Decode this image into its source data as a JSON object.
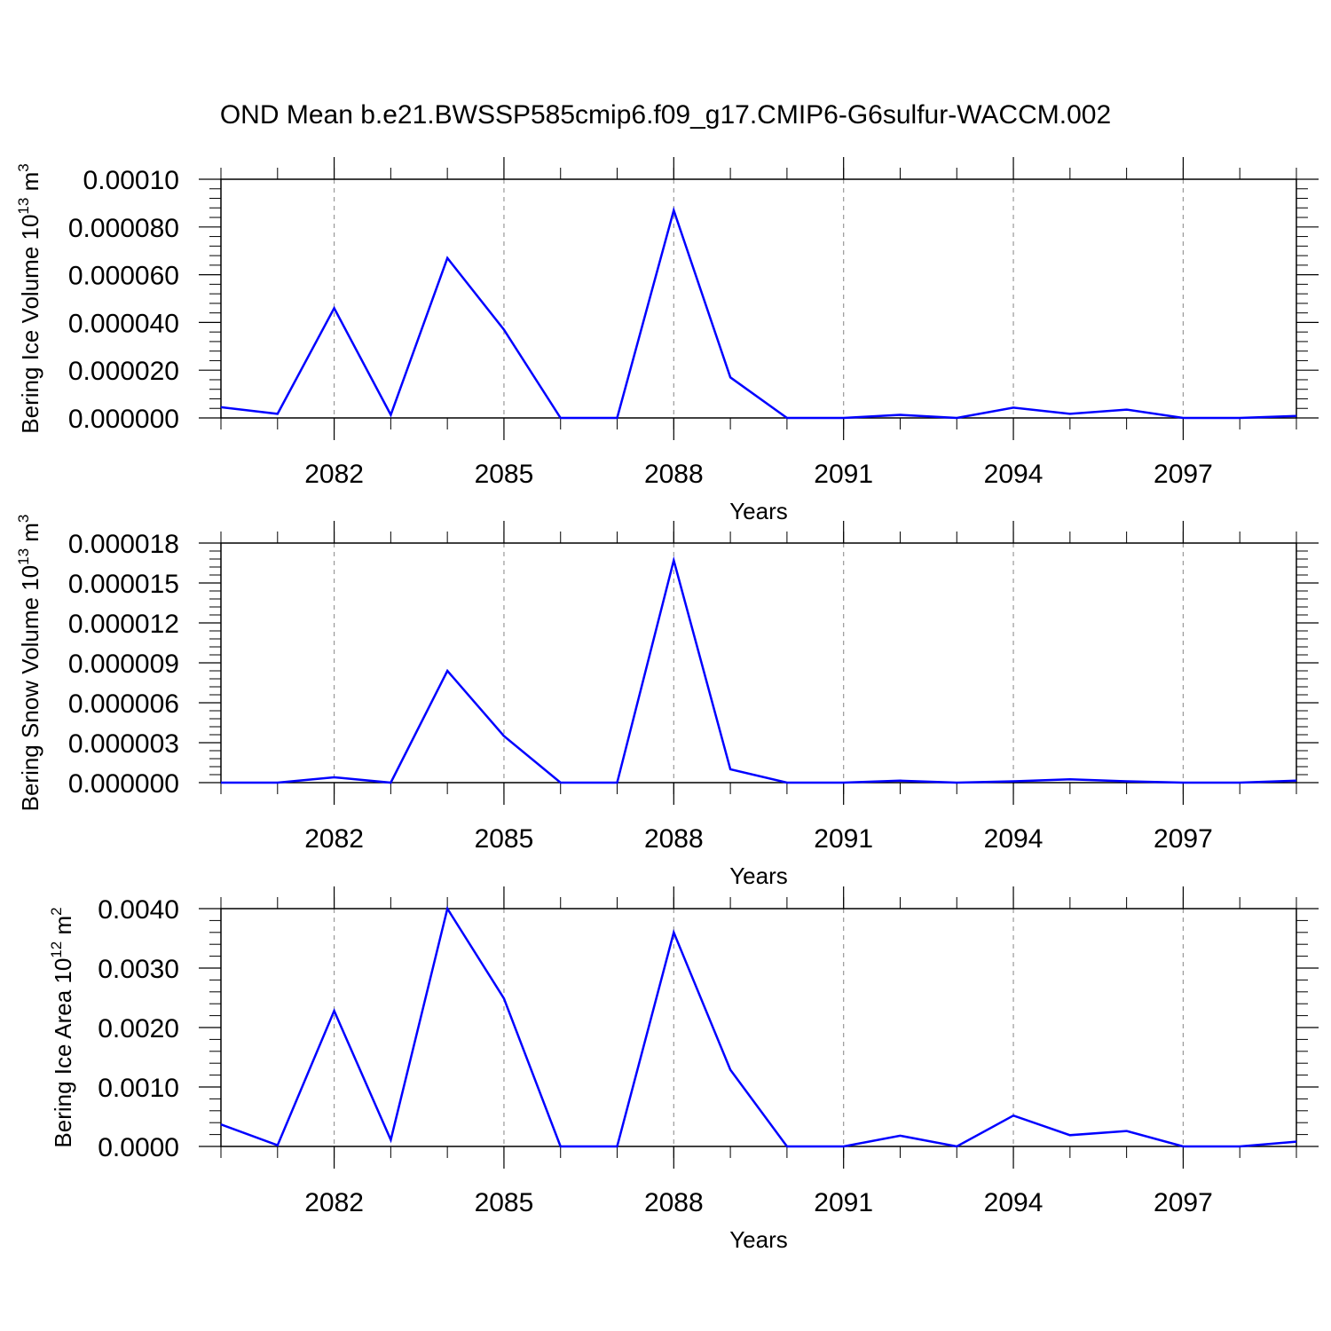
{
  "title": "OND Mean b.e21.BWSSP585cmip6.f09_g17.CMIP6-G6sulfur-WACCM.002",
  "line_color": "#0000ff",
  "chart_data": [
    {
      "type": "line",
      "ylabel": "Bering Ice Volume 10",
      "ylabel_exp": "13",
      "ylabel_unit": "m",
      "ylabel_unit_exp": "3",
      "xlabel": "Years",
      "xlim": [
        2080,
        2099
      ],
      "ylim": [
        0,
        0.0001
      ],
      "xticks": [
        "2082",
        "2085",
        "2088",
        "2091",
        "2094",
        "2097"
      ],
      "yticks": [
        "0.000000",
        "0.000020",
        "0.000040",
        "0.000060",
        "0.000080",
        "0.00010"
      ],
      "grid": "dashed vertical at labeled years",
      "series": [
        {
          "x": [
            2080,
            2081,
            2082,
            2083,
            2084,
            2085,
            2086,
            2087,
            2088,
            2089,
            2090,
            2091,
            2092,
            2093,
            2094,
            2095,
            2096,
            2097,
            2098,
            2099
          ],
          "values": [
            4.5e-06,
            1.7e-06,
            4.6e-05,
            1.3e-06,
            6.7e-05,
            3.7e-05,
            0.0,
            0.0,
            8.7e-05,
            1.7e-05,
            0.0,
            0.0,
            1.3e-06,
            0.0,
            4.3e-06,
            1.7e-06,
            3.5e-06,
            0.0,
            0.0,
            8e-07
          ]
        }
      ]
    },
    {
      "type": "line",
      "ylabel": "Bering Snow Volume 10",
      "ylabel_exp": "13",
      "ylabel_unit": "m",
      "ylabel_unit_exp": "3",
      "xlabel": "Years",
      "xlim": [
        2080,
        2099
      ],
      "ylim": [
        0,
        1.8e-05
      ],
      "xticks": [
        "2082",
        "2085",
        "2088",
        "2091",
        "2094",
        "2097"
      ],
      "yticks": [
        "0.000000",
        "0.000003",
        "0.000006",
        "0.000009",
        "0.000012",
        "0.000015",
        "0.000018"
      ],
      "grid": "dashed vertical at labeled years",
      "series": [
        {
          "x": [
            2080,
            2081,
            2082,
            2083,
            2084,
            2085,
            2086,
            2087,
            2088,
            2089,
            2090,
            2091,
            2092,
            2093,
            2094,
            2095,
            2096,
            2097,
            2098,
            2099
          ],
          "values": [
            0.0,
            0.0,
            4e-07,
            0.0,
            8.4e-06,
            3.5e-06,
            0.0,
            0.0,
            1.67e-05,
            1e-06,
            0.0,
            0.0,
            1.5e-07,
            0.0,
            1e-07,
            2.5e-07,
            1e-07,
            0.0,
            0.0,
            1.5e-07
          ]
        }
      ]
    },
    {
      "type": "line",
      "ylabel": "Bering Ice Area 10",
      "ylabel_exp": "12",
      "ylabel_unit": "m",
      "ylabel_unit_exp": "2",
      "xlabel": "Years",
      "xlim": [
        2080,
        2099
      ],
      "ylim": [
        0,
        0.004
      ],
      "xticks": [
        "2082",
        "2085",
        "2088",
        "2091",
        "2094",
        "2097"
      ],
      "yticks": [
        "0.0000",
        "0.0010",
        "0.0020",
        "0.0030",
        "0.0040"
      ],
      "grid": "dashed vertical at labeled years",
      "series": [
        {
          "x": [
            2080,
            2081,
            2082,
            2083,
            2084,
            2085,
            2086,
            2087,
            2088,
            2089,
            2090,
            2091,
            2092,
            2093,
            2094,
            2095,
            2096,
            2097,
            2098,
            2099
          ],
          "values": [
            0.00037,
            2e-05,
            0.00228,
            0.00011,
            0.004,
            0.00249,
            0.0,
            0.0,
            0.0036,
            0.00129,
            0.0,
            0.0,
            0.00018,
            0.0,
            0.00052,
            0.00019,
            0.00026,
            0.0,
            0.0,
            8e-05
          ]
        }
      ]
    }
  ]
}
